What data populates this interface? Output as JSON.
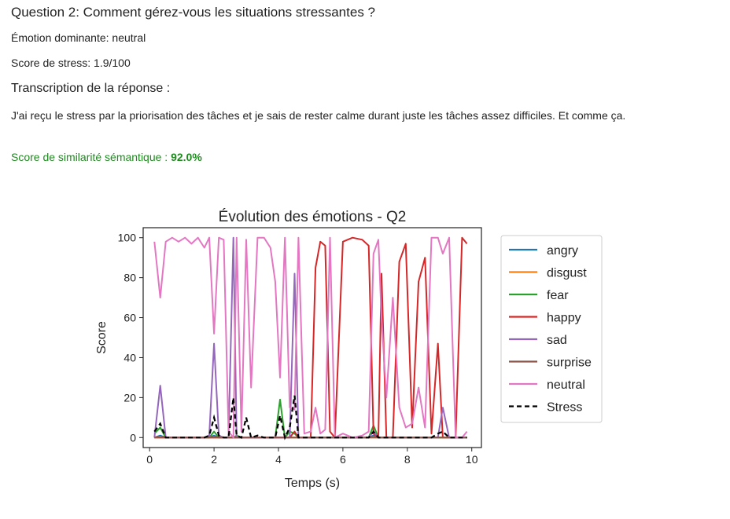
{
  "question": "Question 2: Comment gérez-vous les situations stressantes ?",
  "emotion_line": "Émotion dominante: neutral",
  "stress_line": "Score de stress: 1.9/100",
  "transcript_heading": "Transcription de la réponse :",
  "transcript_text": "J'ai reçu le stress par la priorisation des tâches et je sais de rester calme durant juste les tâches assez difficiles. Et comme ça.",
  "similarity_label": "Score de similarité sémantique :",
  "similarity_value": "92.0%",
  "chart_data": {
    "type": "line",
    "title": "Évolution des émotions - Q2",
    "xlabel": "Temps (s)",
    "ylabel": "Score",
    "xlim": [
      -0.2,
      10.3
    ],
    "ylim": [
      -5,
      105
    ],
    "xticks": [
      0,
      2,
      4,
      6,
      8,
      10
    ],
    "yticks": [
      0,
      20,
      40,
      60,
      80,
      100
    ],
    "legend_position": "right",
    "x": [
      0.15,
      0.33,
      0.5,
      0.7,
      0.9,
      1.1,
      1.3,
      1.5,
      1.7,
      1.85,
      2.0,
      2.15,
      2.3,
      2.45,
      2.6,
      2.7,
      2.85,
      3.0,
      3.15,
      3.35,
      3.55,
      3.75,
      3.9,
      4.05,
      4.2,
      4.35,
      4.5,
      4.62,
      4.8,
      5.0,
      5.15,
      5.3,
      5.45,
      5.6,
      5.75,
      6.0,
      6.3,
      6.6,
      6.8,
      6.95,
      7.1,
      7.2,
      7.35,
      7.55,
      7.75,
      7.95,
      8.15,
      8.35,
      8.55,
      8.75,
      8.95,
      9.1,
      9.3,
      9.5,
      9.7,
      9.85
    ],
    "series": [
      {
        "name": "angry",
        "color": "#1f77b4",
        "values": [
          0,
          1,
          0,
          0,
          0,
          0,
          0,
          0,
          0,
          0,
          1,
          0,
          0,
          0,
          0,
          0,
          0,
          0,
          0,
          0,
          0,
          0,
          0,
          0,
          0,
          0,
          0,
          0,
          0,
          0,
          0,
          0,
          0,
          0,
          0,
          0,
          0,
          0,
          0,
          1,
          0,
          0,
          0,
          0,
          0,
          0,
          0,
          0,
          0,
          0,
          0,
          0,
          0,
          0,
          0,
          0
        ]
      },
      {
        "name": "disgust",
        "color": "#ff7f0e",
        "values": [
          0,
          0,
          0,
          0,
          0,
          0,
          0,
          0,
          0,
          0,
          0,
          0,
          0,
          0,
          0,
          0,
          0,
          0,
          0,
          0,
          0,
          0,
          0,
          0,
          0,
          0,
          0,
          0,
          0,
          0,
          0,
          0,
          0,
          0,
          0,
          0,
          0,
          0,
          0,
          0,
          0,
          0,
          0,
          0,
          0,
          0,
          0,
          0,
          0,
          0,
          0,
          0,
          0,
          0,
          0,
          0
        ]
      },
      {
        "name": "fear",
        "color": "#2ca02c",
        "values": [
          2,
          5,
          0,
          0,
          0,
          0,
          0,
          0,
          0,
          0,
          3,
          0,
          0,
          0,
          0,
          1,
          0,
          0,
          0,
          0,
          0,
          0,
          0,
          19,
          0,
          3,
          2,
          0,
          0,
          0,
          0,
          0,
          0,
          0,
          0,
          0,
          0,
          0,
          0,
          6,
          0,
          0,
          0,
          0,
          0,
          0,
          0,
          0,
          0,
          0,
          0,
          0,
          0,
          0,
          0,
          0
        ]
      },
      {
        "name": "happy",
        "color": "#d62728",
        "values": [
          0,
          0,
          0,
          0,
          0,
          0,
          0,
          0,
          0,
          0,
          0,
          0,
          0,
          0,
          0,
          0,
          0,
          0,
          0,
          0,
          0,
          0,
          0,
          0,
          0,
          0,
          3,
          0,
          0,
          0,
          85,
          98,
          96,
          3,
          0,
          98,
          100,
          99,
          96,
          2,
          0,
          82,
          0,
          0,
          88,
          97,
          5,
          78,
          90,
          2,
          47,
          0,
          0,
          0,
          100,
          97
        ]
      },
      {
        "name": "sad",
        "color": "#9467bd",
        "values": [
          0,
          26,
          0,
          0,
          0,
          0,
          0,
          0,
          0,
          1,
          47,
          1,
          0,
          0,
          100,
          0,
          0,
          0,
          0,
          0,
          0,
          0,
          0,
          0,
          0,
          0,
          82,
          0,
          0,
          0,
          0,
          0,
          0,
          0,
          0,
          0,
          0,
          0,
          0,
          3,
          0,
          0,
          0,
          0,
          0,
          0,
          0,
          0,
          0,
          0,
          0,
          15,
          0,
          0,
          0,
          0
        ]
      },
      {
        "name": "surprise",
        "color": "#8c564b",
        "values": [
          0,
          0,
          0,
          0,
          0,
          0,
          0,
          0,
          0,
          0,
          0,
          0,
          0,
          0,
          0,
          0,
          0,
          0,
          0,
          0,
          0,
          0,
          0,
          0,
          0,
          0,
          0,
          0,
          0,
          0,
          0,
          0,
          0,
          0,
          0,
          0,
          0,
          0,
          0,
          0,
          0,
          0,
          0,
          0,
          0,
          0,
          0,
          0,
          0,
          0,
          0,
          0,
          0,
          0,
          0,
          0
        ]
      },
      {
        "name": "neutral",
        "color": "#e377c2",
        "values": [
          98,
          70,
          98,
          100,
          98,
          100,
          97,
          100,
          95,
          100,
          52,
          100,
          99,
          3,
          0,
          100,
          3,
          99,
          25,
          100,
          100,
          95,
          78,
          30,
          100,
          15,
          14,
          100,
          2,
          3,
          15,
          2,
          4,
          100,
          0,
          2,
          0,
          1,
          3,
          92,
          99,
          60,
          20,
          70,
          15,
          5,
          7,
          25,
          5,
          100,
          100,
          92,
          100,
          0,
          0,
          3
        ]
      }
    ],
    "stress": {
      "name": "Stress",
      "color": "#000000",
      "style": "dashed",
      "values": [
        3,
        7,
        0,
        0,
        0,
        0,
        0,
        0,
        0,
        1,
        10,
        1,
        0,
        0,
        20,
        1,
        0,
        10,
        0,
        1,
        0,
        0,
        0,
        11,
        0,
        5,
        21,
        0,
        0,
        0,
        0,
        0,
        0,
        0,
        0,
        0,
        0,
        0,
        0,
        3,
        0,
        0,
        0,
        0,
        0,
        0,
        0,
        0,
        0,
        0,
        2,
        3,
        0,
        0,
        0,
        0
      ]
    }
  }
}
